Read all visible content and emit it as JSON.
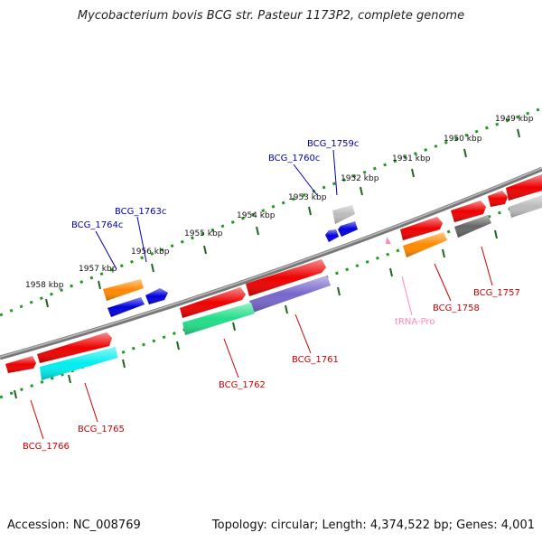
{
  "title": "Mycobacterium bovis BCG str. Pasteur 1173P2, complete genome",
  "footer": {
    "accession": "Accession: NC_008769",
    "summary": "Topology: circular; Length: 4,374,522 bp; Genes: 4,001"
  },
  "ticks": [
    "1949 kbp",
    "1950 kbp",
    "1951 kbp",
    "1952 kbp",
    "1953 kbp",
    "1954 kbp",
    "1955 kbp",
    "1956 kbp",
    "1957 kbp",
    "1958 kbp"
  ],
  "labels": {
    "BCG_1759c": "BCG_1759c",
    "BCG_1760c": "BCG_1760c",
    "BCG_1763c": "BCG_1763c",
    "BCG_1764c": "BCG_1764c",
    "BCG_1757": "BCG_1757",
    "BCG_1758": "BCG_1758",
    "tRNA_Pro": "tRNA-Pro",
    "BCG_1761": "BCG_1761",
    "BCG_1762": "BCG_1762",
    "BCG_1765": "BCG_1765",
    "BCG_1766": "BCG_1766"
  },
  "colors": {
    "backbone": "#777777",
    "red": "#ee0000",
    "blue": "#0000dd",
    "orange": "#ff8800",
    "cyan": "#00eeee",
    "green": "#22dd88",
    "purple": "#7766cc",
    "grey": "#bbbbbb",
    "darkgrey": "#666666",
    "trna": "#ff88bb",
    "label_forward": "#cc0000",
    "label_reverse": "#0000aa",
    "tick": "#226622"
  }
}
